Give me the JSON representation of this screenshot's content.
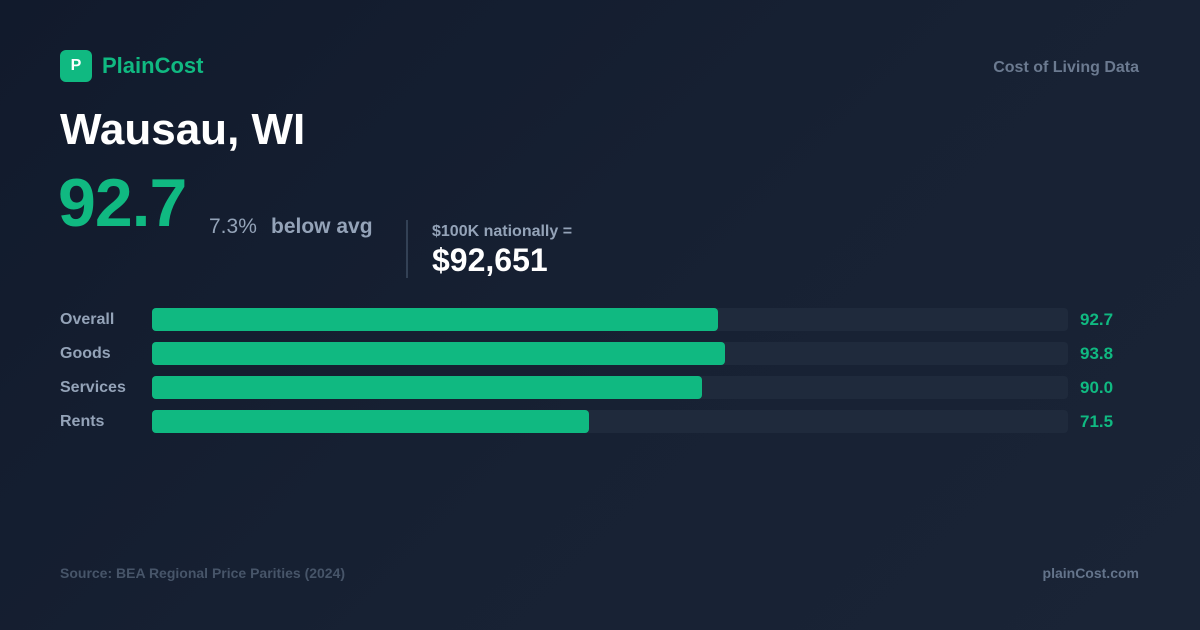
{
  "logo": "P",
  "brand": "PlainCost",
  "tagline": "Cost of Living Data",
  "city": "Wausau, WI",
  "index": "92.7",
  "difference": "7.3%",
  "direction": "below avg",
  "equivalent_label": "$100K nationally =",
  "equivalent_value": "$92,651",
  "source": "Source: BEA Regional Price Parities (2024)",
  "site": "plainCost.com",
  "chart_data": {
    "type": "bar",
    "orientation": "horizontal",
    "categories": [
      "Overall",
      "Goods",
      "Services",
      "Rents"
    ],
    "values": [
      92.7,
      93.8,
      90.0,
      71.5
    ],
    "value_labels": [
      "92.7",
      "93.8",
      "90.0",
      "71.5"
    ],
    "color": "#10b981",
    "xlim": [
      0,
      150
    ]
  }
}
